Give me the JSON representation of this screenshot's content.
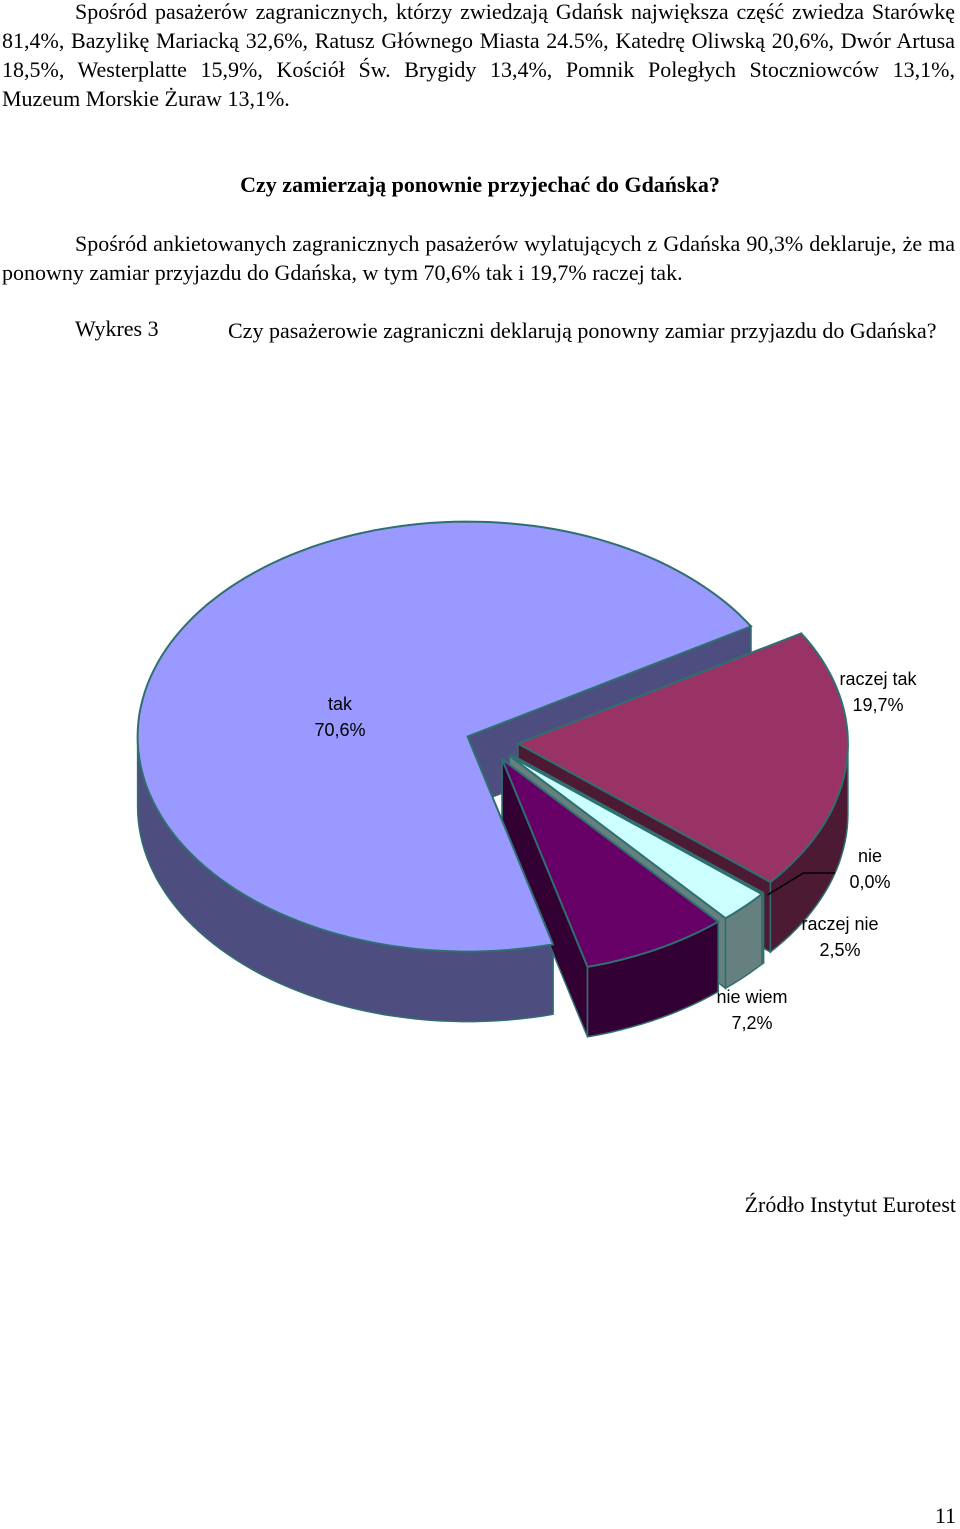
{
  "document": {
    "paragraph1": "Spośród pasażerów zagranicznych, którzy zwiedzają Gdańsk największa część zwiedza Starówkę 81,4%, Bazylikę Mariacką 32,6%, Ratusz Głównego Miasta 24.5%, Katedrę Oliwską 20,6%, Dwór Artusa 18,5%, Westerplatte 15,9%, Kościół Św. Brygidy 13,4%, Pomnik Poległych Stoczniowców 13,1%,  Muzeum Morskie Żuraw 13,1%.",
    "heading": "Czy zamierzają ponownie przyjechać do Gdańska?",
    "paragraph2": "Spośród ankietowanych zagranicznych pasażerów wylatujących z Gdańska 90,3% deklaruje, że ma ponowny zamiar przyjazdu do Gdańska, w tym 70,6% tak i 19,7% raczej tak.",
    "caption_label": "Wykres 3",
    "caption_text": "Czy pasażerowie zagraniczni deklarują ponowny zamiar przyjazdu do Gdańska?",
    "source": "Źródło Instytut Eurotest",
    "page_number": "11"
  },
  "chart_data": {
    "type": "pie",
    "categories": [
      "tak",
      "raczej tak",
      "nie",
      "raczej nie",
      "nie wiem"
    ],
    "values": [
      70.6,
      19.7,
      0.0,
      2.5,
      7.2
    ],
    "value_labels": [
      "70,6%",
      "19,7%",
      "0,0%",
      "2,5%",
      "7,2%"
    ],
    "colors": [
      "#9999ff",
      "#993366",
      "#ffffcc",
      "#ccffff",
      "#660066"
    ]
  }
}
